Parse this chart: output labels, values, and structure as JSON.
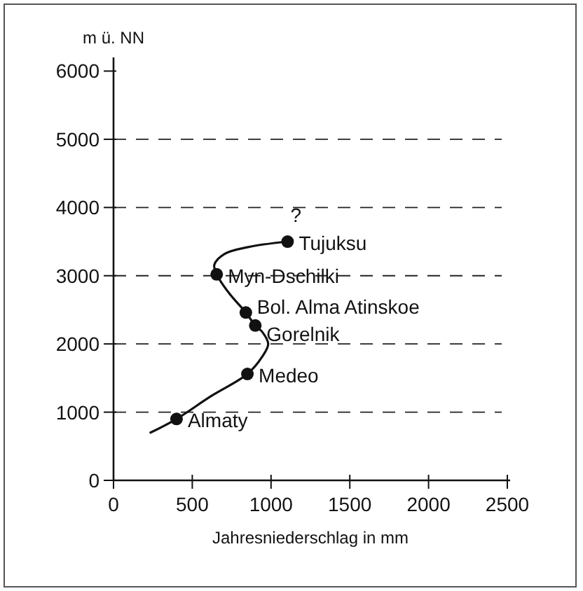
{
  "chart_data": {
    "type": "scatter",
    "ylabel": "m ü. NN",
    "xlabel": "Jahresniederschlag in mm",
    "xlim": [
      0,
      2500
    ],
    "ylim": [
      0,
      6200
    ],
    "xticks": [
      0,
      500,
      1000,
      1500,
      2000,
      2500
    ],
    "yticks": [
      0,
      1000,
      2000,
      3000,
      4000,
      5000,
      6000
    ],
    "grid": false,
    "marker": "circle",
    "series": [
      {
        "type": "line",
        "color": "#111111",
        "line_style": "solid",
        "marker": "none",
        "x": [
          235,
          400,
          616,
          850,
          943,
          982,
          943,
          900,
          840,
          735,
          655,
          640,
          705,
          854,
          1105
        ],
        "values": [
          700,
          900,
          1230,
          1560,
          1810,
          2000,
          2180,
          2270,
          2460,
          2740,
          3020,
          3160,
          3320,
          3420,
          3500
        ]
      },
      {
        "color": "#111111",
        "x": [
          400,
          850,
          900,
          840,
          655,
          1105
        ],
        "values": [
          900,
          1560,
          2270,
          2460,
          3020,
          3500
        ]
      }
    ],
    "ref_lines": [
      {
        "axis": "y",
        "value": 1000,
        "line_style": "dashed",
        "color": "#222222"
      },
      {
        "axis": "y",
        "value": 2000,
        "line_style": "dashed",
        "color": "#222222"
      },
      {
        "axis": "y",
        "value": 3000,
        "line_style": "dashed",
        "color": "#222222"
      },
      {
        "axis": "y",
        "value": 4000,
        "line_style": "dashed",
        "color": "#222222"
      },
      {
        "axis": "y",
        "value": 5000,
        "line_style": "dashed",
        "color": "#222222"
      }
    ],
    "annotations": [
      {
        "text": "Almaty",
        "x": 400,
        "y": 900
      },
      {
        "text": "Medeo",
        "x": 850,
        "y": 1560
      },
      {
        "text": "Gorelnik",
        "x": 900,
        "y": 2270
      },
      {
        "text": "Bol. Alma Atinskoe",
        "x": 840,
        "y": 2460
      },
      {
        "text": "Myn-Dschilki",
        "x": 655,
        "y": 3020
      },
      {
        "text": "Tujuksu",
        "x": 1105,
        "y": 3500
      },
      {
        "text": "?",
        "x": 1105,
        "y": 3500
      }
    ]
  }
}
